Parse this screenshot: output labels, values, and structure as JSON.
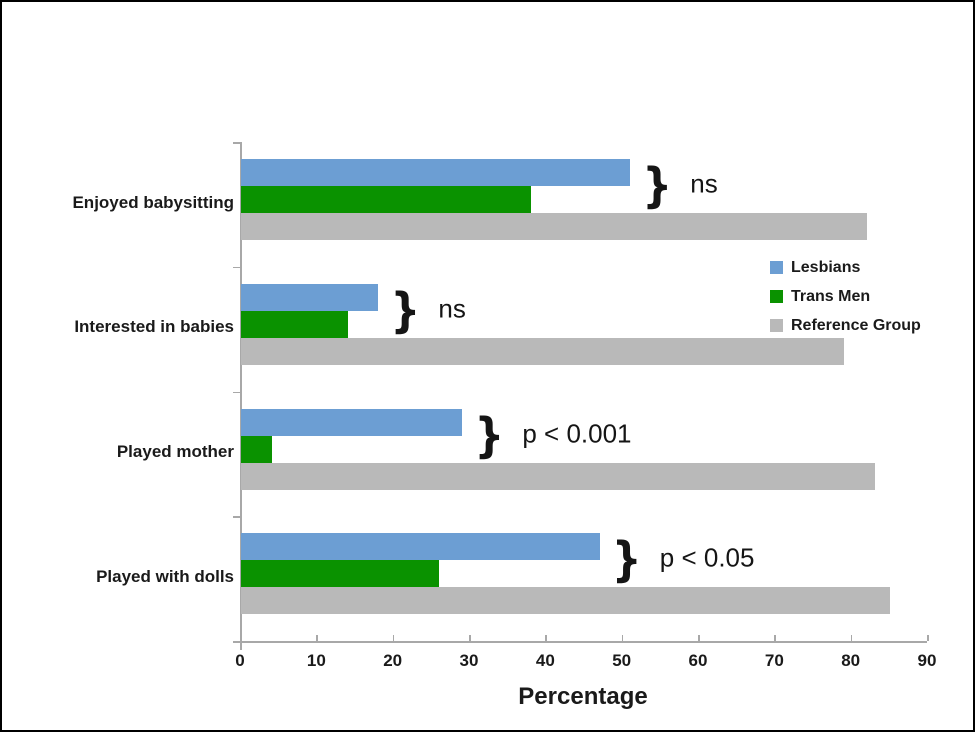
{
  "chart_data": {
    "type": "bar",
    "orientation": "horizontal",
    "title": "",
    "xlabel": "Percentage",
    "xlim": [
      0,
      90
    ],
    "x_ticks": [
      0,
      10,
      20,
      30,
      40,
      50,
      60,
      70,
      80,
      90
    ],
    "grid": false,
    "legend_position": "right-middle",
    "categories": [
      "Enjoyed babysitting",
      "Interested in babies",
      "Played mother",
      "Played with dolls"
    ],
    "series": [
      {
        "name": "Lesbians",
        "color": "#6C9ED3",
        "values": [
          51,
          18,
          29,
          47
        ]
      },
      {
        "name": "Trans Men",
        "color": "#0A9200",
        "values": [
          38,
          14,
          4,
          26
        ]
      },
      {
        "name": "Reference Group",
        "color": "#B9B9B9",
        "values": [
          82,
          79,
          83,
          85
        ]
      }
    ],
    "annotations": [
      {
        "category": "Enjoyed babysitting",
        "text": "ns"
      },
      {
        "category": "Interested in babies",
        "text": "ns"
      },
      {
        "category": "Played mother",
        "text": "p < 0.001"
      },
      {
        "category": "Played with dolls",
        "text": "p < 0.05"
      }
    ]
  }
}
